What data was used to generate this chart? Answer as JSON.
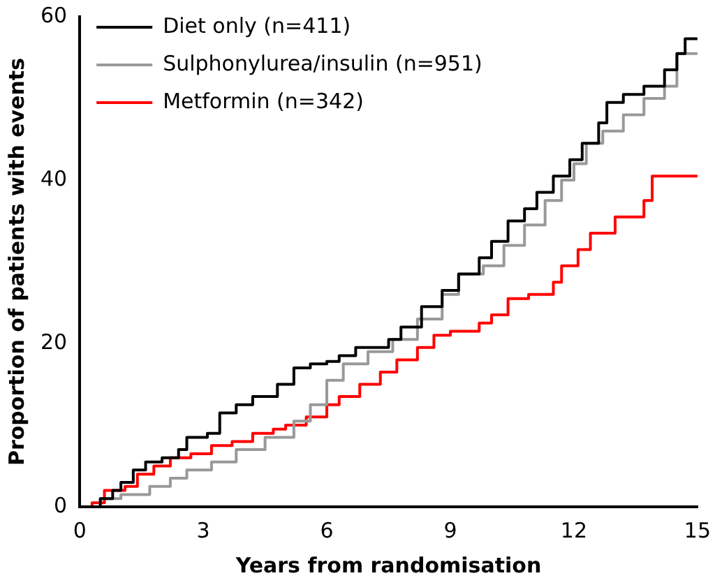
{
  "chart_data": {
    "type": "step",
    "xlabel": "Years from randomisation",
    "ylabel": "Proportion of patients with events",
    "xlim": [
      0,
      15
    ],
    "xticks": [
      0,
      3,
      6,
      9,
      12,
      15
    ],
    "ylim": [
      0,
      60
    ],
    "yticks": [
      0,
      20,
      40,
      60
    ],
    "grid": false,
    "legend": "top left",
    "marker": "none",
    "line_style": "solid",
    "series": [
      {
        "name": "Diet only (n=411)",
        "color": "#000000",
        "x": [
          0,
          0.5,
          0.8,
          1,
          1.3,
          1.6,
          2.0,
          2.4,
          2.6,
          3.1,
          3.4,
          3.8,
          4.2,
          4.8,
          5.2,
          5.6,
          6.0,
          6.3,
          6.7,
          7.5,
          7.8,
          8.3,
          8.8,
          9.2,
          9.7,
          10.0,
          10.4,
          10.8,
          11.1,
          11.5,
          11.9,
          12.2,
          12.6,
          12.8,
          13.2,
          13.7,
          14.2,
          14.5,
          14.7,
          15
        ],
        "values": [
          0,
          1,
          2,
          3,
          4.5,
          5.5,
          6,
          7,
          8.5,
          9,
          11.5,
          12.5,
          13.5,
          15,
          17,
          17.5,
          17.8,
          18.5,
          19.5,
          20.5,
          22,
          24.5,
          26.5,
          28.5,
          30.5,
          32.5,
          35,
          36.5,
          38.5,
          40.5,
          42.5,
          44.5,
          47,
          49.5,
          50.5,
          51.5,
          53.5,
          55.5,
          57.3,
          57.3
        ]
      },
      {
        "name": "Sulphonylurea/insulin (n=951)",
        "color": "#999999",
        "x": [
          0,
          0.5,
          1,
          1.7,
          2.2,
          2.6,
          3.2,
          3.8,
          4.5,
          5.2,
          5.6,
          6.0,
          6.4,
          7,
          7.6,
          8.2,
          8.8,
          9.2,
          9.8,
          10.3,
          10.8,
          11.3,
          11.7,
          12.0,
          12.3,
          12.7,
          13.2,
          13.7,
          14.2,
          14.5,
          15
        ],
        "values": [
          0,
          1,
          1.5,
          2.5,
          3.5,
          4.5,
          5.5,
          7,
          8.5,
          10.5,
          12.5,
          15.5,
          17.5,
          19,
          20.5,
          23,
          26,
          28.5,
          29.5,
          32,
          34.5,
          37.5,
          40,
          42,
          44.5,
          46,
          48,
          50,
          51.5,
          55.5,
          55.5
        ]
      },
      {
        "name": "Metformin (n=342)",
        "color": "#ff0000",
        "x": [
          0,
          0.3,
          0.6,
          1.1,
          1.4,
          1.8,
          2.2,
          2.7,
          3.2,
          3.7,
          4.2,
          4.7,
          5.0,
          5.5,
          6.0,
          6.3,
          6.8,
          7.3,
          7.7,
          8.2,
          8.6,
          9.0,
          9.7,
          10.0,
          10.4,
          10.9,
          11.5,
          11.7,
          12.1,
          12.4,
          13.0,
          13.7,
          13.9,
          15
        ],
        "values": [
          0,
          0.5,
          2,
          2.5,
          4,
          5,
          6,
          6.5,
          7.5,
          8,
          9,
          9.5,
          10,
          11,
          12.5,
          13.5,
          15,
          16.5,
          18,
          19.5,
          21,
          21.5,
          22.5,
          23.5,
          25.5,
          26,
          27.5,
          29.5,
          31.5,
          33.5,
          35.5,
          37.5,
          40.5,
          40.5
        ]
      }
    ]
  }
}
